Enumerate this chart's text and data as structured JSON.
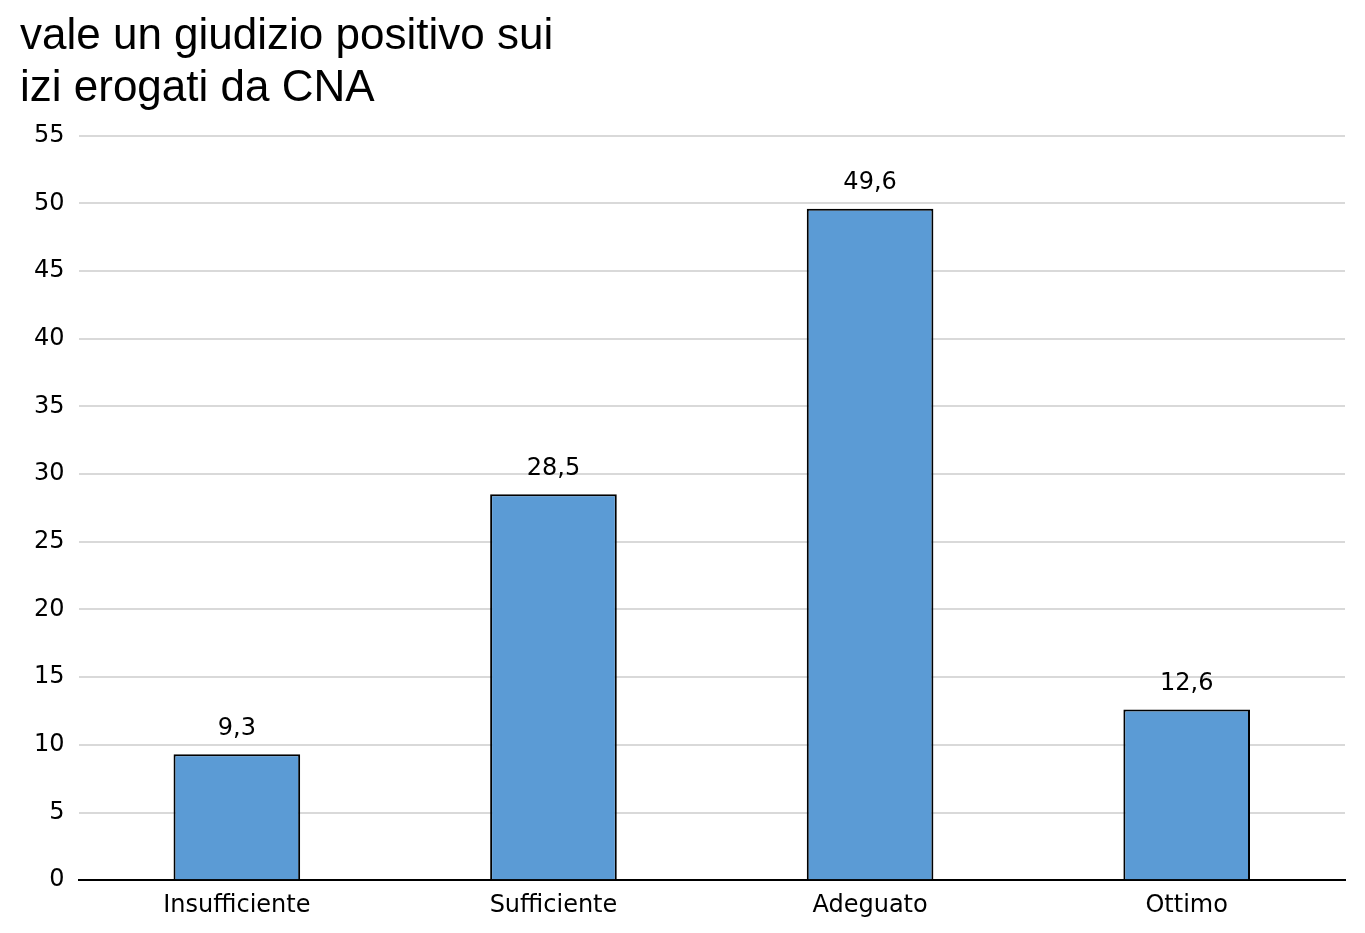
{
  "chart_data": {
    "type": "bar",
    "title": [
      "vale un giudizio positivo sui",
      "izi erogati da CNA"
    ],
    "categories": [
      "Insufficiente",
      "Sufficiente",
      "Adeguato",
      "Ottimo"
    ],
    "values": [
      9.3,
      28.5,
      49.6,
      12.6
    ],
    "color": "#5b9bd5",
    "value_labels": [
      "9,3",
      "28,5",
      "49,6",
      "12,6"
    ],
    "ylim": [
      0,
      55
    ],
    "yticks": [
      0,
      5,
      10,
      15,
      20,
      25,
      30,
      35,
      40,
      45,
      50,
      55
    ],
    "grid": "y",
    "legend": false
  }
}
